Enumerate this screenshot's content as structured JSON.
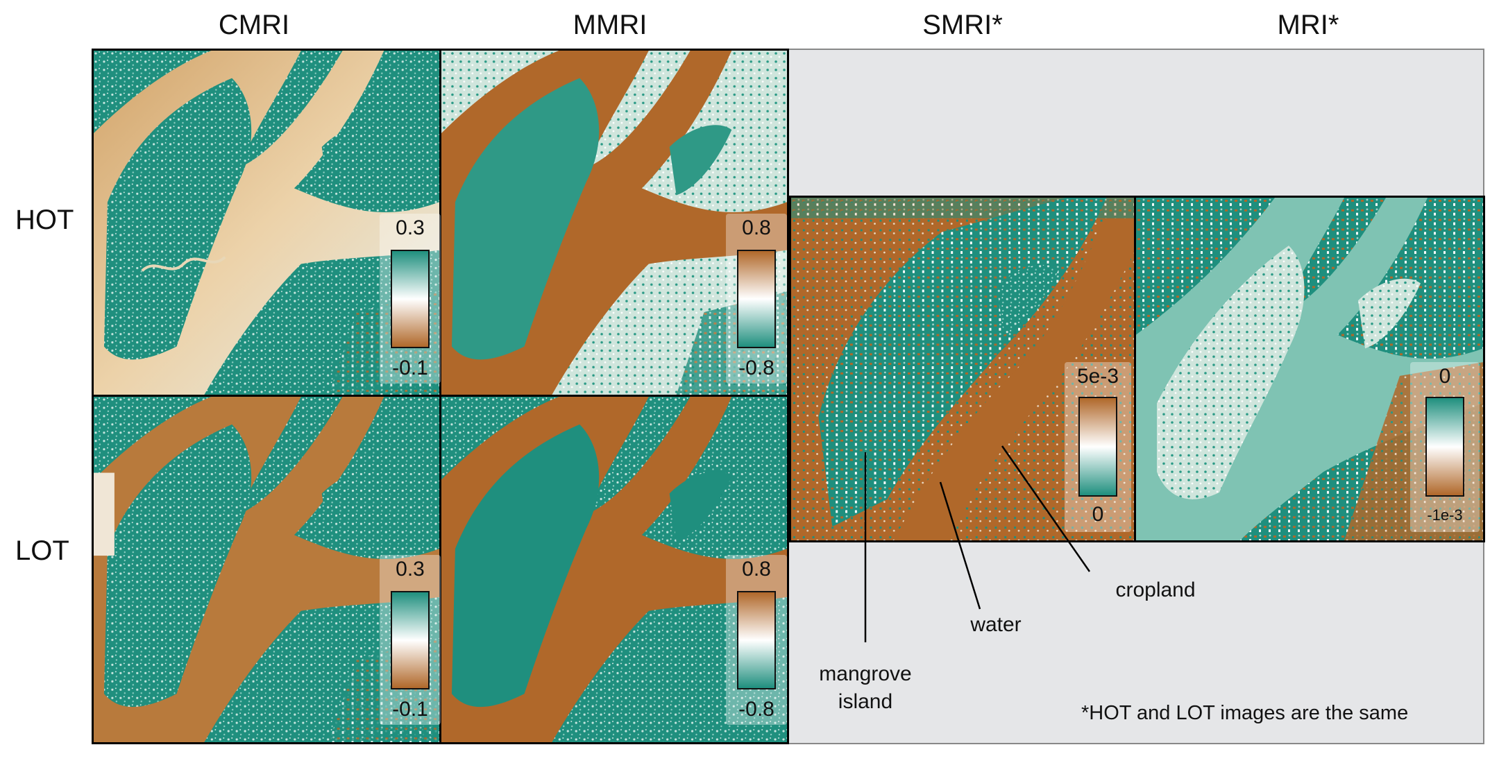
{
  "columns": [
    "CMRI",
    "MMRI",
    "SMRI*",
    "MRI*"
  ],
  "rows": [
    "HOT",
    "LOT"
  ],
  "colorbars": {
    "cmri_hot": {
      "top": "0.3",
      "bottom": "-0.1"
    },
    "mmri_hot": {
      "top": "0.8",
      "bottom": "-0.8"
    },
    "cmri_lot": {
      "top": "0.3",
      "bottom": "-0.1"
    },
    "mmri_lot": {
      "top": "0.8",
      "bottom": "-0.8"
    },
    "smri": {
      "top": "5e-3",
      "bottom": "0"
    },
    "mri": {
      "top": "0",
      "bottom": "-1e-3"
    }
  },
  "annotations": {
    "mangrove": "mangrove\nisland",
    "water": "water",
    "cropland": "cropland"
  },
  "note": "*HOT and LOT images are the same",
  "colors": {
    "teal": "#1f8f7e",
    "brown": "#b0682a",
    "tan": "#d9b27a",
    "light": "#e8f1ee",
    "panel_bg_gray": "#e5e6e8"
  }
}
